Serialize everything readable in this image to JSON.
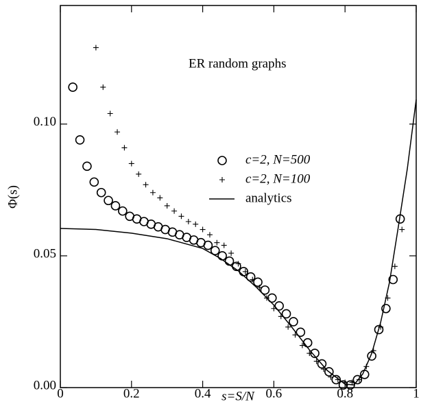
{
  "chart_data": {
    "type": "scatter",
    "annotation": "ER random graphs",
    "x_label": "s=S/N",
    "y_label": "Φ(s)",
    "xlim": [
      0,
      1
    ],
    "ylim": [
      0,
      0.145
    ],
    "xticks": [
      0,
      0.2,
      0.4,
      0.6,
      0.8,
      1
    ],
    "yticks": [
      {
        "value": 0,
        "label": "0.00"
      },
      {
        "value": 0.05,
        "label": "0.05"
      },
      {
        "value": 0.1,
        "label": "0.10"
      }
    ],
    "series": [
      {
        "name": "c=2, N=500",
        "marker": "circle",
        "color": "#000000",
        "x": [
          0.035,
          0.055,
          0.075,
          0.095,
          0.115,
          0.135,
          0.155,
          0.175,
          0.195,
          0.215,
          0.235,
          0.255,
          0.275,
          0.295,
          0.315,
          0.335,
          0.355,
          0.375,
          0.395,
          0.415,
          0.435,
          0.455,
          0.475,
          0.495,
          0.515,
          0.535,
          0.555,
          0.575,
          0.595,
          0.615,
          0.635,
          0.655,
          0.675,
          0.695,
          0.715,
          0.735,
          0.755,
          0.775,
          0.795,
          0.815,
          0.835,
          0.855,
          0.875,
          0.895,
          0.915,
          0.935,
          0.955
        ],
        "values": [
          0.114,
          0.094,
          0.084,
          0.078,
          0.074,
          0.071,
          0.069,
          0.067,
          0.065,
          0.064,
          0.063,
          0.062,
          0.061,
          0.06,
          0.059,
          0.058,
          0.057,
          0.056,
          0.055,
          0.054,
          0.052,
          0.05,
          0.048,
          0.046,
          0.044,
          0.042,
          0.04,
          0.037,
          0.034,
          0.031,
          0.028,
          0.025,
          0.021,
          0.017,
          0.013,
          0.009,
          0.006,
          0.003,
          0.001,
          0.001,
          0.003,
          0.005,
          0.012,
          0.022,
          0.03,
          0.041,
          0.064
        ]
      },
      {
        "name": "c=2, N=100",
        "marker": "plus",
        "color": "#000000",
        "x": [
          0.1,
          0.12,
          0.14,
          0.16,
          0.18,
          0.2,
          0.22,
          0.24,
          0.26,
          0.28,
          0.3,
          0.32,
          0.34,
          0.36,
          0.38,
          0.4,
          0.42,
          0.44,
          0.46,
          0.48,
          0.5,
          0.52,
          0.54,
          0.56,
          0.58,
          0.6,
          0.62,
          0.64,
          0.66,
          0.68,
          0.7,
          0.72,
          0.74,
          0.76,
          0.78,
          0.8,
          0.82,
          0.84,
          0.86,
          0.88,
          0.9,
          0.92,
          0.94,
          0.96
        ],
        "values": [
          0.129,
          0.114,
          0.104,
          0.097,
          0.091,
          0.085,
          0.081,
          0.077,
          0.074,
          0.072,
          0.069,
          0.067,
          0.065,
          0.063,
          0.062,
          0.06,
          0.058,
          0.055,
          0.054,
          0.051,
          0.047,
          0.044,
          0.041,
          0.038,
          0.034,
          0.03,
          0.027,
          0.023,
          0.02,
          0.016,
          0.013,
          0.01,
          0.007,
          0.004,
          0.003,
          0.002,
          0.002,
          0.003,
          0.008,
          0.014,
          0.023,
          0.034,
          0.046,
          0.06
        ]
      },
      {
        "name": "analytics",
        "marker": "line",
        "color": "#000000",
        "x": [
          0,
          0.1,
          0.2,
          0.3,
          0.4,
          0.45,
          0.5,
          0.55,
          0.6,
          0.65,
          0.7,
          0.75,
          0.8,
          0.825,
          0.85,
          0.875,
          0.9,
          0.925,
          0.95,
          0.975,
          1.0
        ],
        "values": [
          0.0604,
          0.06,
          0.0586,
          0.0565,
          0.0528,
          0.049,
          0.0443,
          0.0382,
          0.0313,
          0.023,
          0.0143,
          0.0065,
          0.0013,
          0.001,
          0.0052,
          0.013,
          0.0247,
          0.04,
          0.0612,
          0.083,
          0.1093
        ]
      }
    ]
  }
}
